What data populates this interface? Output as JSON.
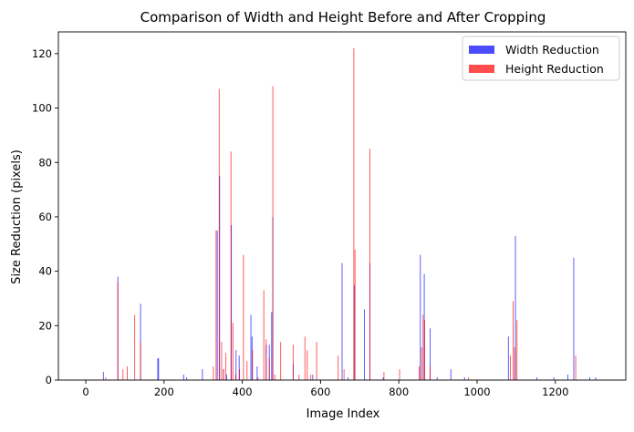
{
  "chart_data": {
    "type": "bar",
    "title": "Comparison of Width and Height Before and After Cropping",
    "xlabel": "Image Index",
    "ylabel": "Size Reduction (pixels)",
    "xlim": [
      -70,
      1380
    ],
    "ylim": [
      0,
      128
    ],
    "xticks": [
      0,
      200,
      400,
      600,
      800,
      1000,
      1200
    ],
    "yticks": [
      0,
      20,
      40,
      60,
      80,
      100,
      120
    ],
    "grid": false,
    "legend_position": "top-right",
    "series": [
      {
        "name": "Width Reduction",
        "color": "#0000ff",
        "points": [
          [
            45,
            3
          ],
          [
            82,
            38
          ],
          [
            140,
            28
          ],
          [
            184,
            8
          ],
          [
            186,
            8
          ],
          [
            250,
            2
          ],
          [
            258,
            1
          ],
          [
            298,
            4
          ],
          [
            336,
            55
          ],
          [
            342,
            75
          ],
          [
            352,
            4
          ],
          [
            360,
            2
          ],
          [
            372,
            57
          ],
          [
            384,
            11
          ],
          [
            392,
            9
          ],
          [
            422,
            24
          ],
          [
            425,
            16
          ],
          [
            438,
            5
          ],
          [
            461,
            13
          ],
          [
            469,
            13
          ],
          [
            475,
            25
          ],
          [
            478,
            60
          ],
          [
            530,
            6
          ],
          [
            580,
            2
          ],
          [
            655,
            43
          ],
          [
            670,
            1
          ],
          [
            686,
            35
          ],
          [
            712,
            26
          ],
          [
            726,
            43
          ],
          [
            760,
            1
          ],
          [
            855,
            46
          ],
          [
            865,
            39
          ],
          [
            880,
            19
          ],
          [
            898,
            1
          ],
          [
            933,
            4
          ],
          [
            968,
            1
          ],
          [
            1080,
            16
          ],
          [
            1098,
            53
          ],
          [
            1153,
            1
          ],
          [
            1196,
            1
          ],
          [
            1232,
            2
          ],
          [
            1247,
            45
          ],
          [
            1288,
            1
          ],
          [
            1303,
            1
          ]
        ]
      },
      {
        "name": "Height Reduction",
        "color": "#ff0000",
        "points": [
          [
            51,
            1
          ],
          [
            82,
            36
          ],
          [
            95,
            4
          ],
          [
            106,
            5
          ],
          [
            125,
            24
          ],
          [
            140,
            14
          ],
          [
            326,
            5
          ],
          [
            333,
            55
          ],
          [
            341,
            107
          ],
          [
            347,
            14
          ],
          [
            352,
            4
          ],
          [
            358,
            10
          ],
          [
            371,
            84
          ],
          [
            376,
            21
          ],
          [
            383,
            2
          ],
          [
            393,
            4
          ],
          [
            403,
            46
          ],
          [
            412,
            7
          ],
          [
            426,
            11
          ],
          [
            440,
            1
          ],
          [
            455,
            33
          ],
          [
            461,
            15
          ],
          [
            469,
            8
          ],
          [
            478,
            108
          ],
          [
            483,
            2
          ],
          [
            498,
            14
          ],
          [
            530,
            13
          ],
          [
            545,
            2
          ],
          [
            560,
            16
          ],
          [
            566,
            11
          ],
          [
            575,
            2
          ],
          [
            590,
            14
          ],
          [
            645,
            9
          ],
          [
            660,
            4
          ],
          [
            685,
            122
          ],
          [
            688,
            48
          ],
          [
            726,
            85
          ],
          [
            762,
            3
          ],
          [
            802,
            4
          ],
          [
            852,
            5
          ],
          [
            858,
            12
          ],
          [
            862,
            24
          ],
          [
            866,
            22
          ],
          [
            880,
            5
          ],
          [
            978,
            1
          ],
          [
            1085,
            9
          ],
          [
            1092,
            29
          ],
          [
            1096,
            12
          ],
          [
            1102,
            22
          ],
          [
            1252,
            9
          ]
        ]
      }
    ]
  }
}
